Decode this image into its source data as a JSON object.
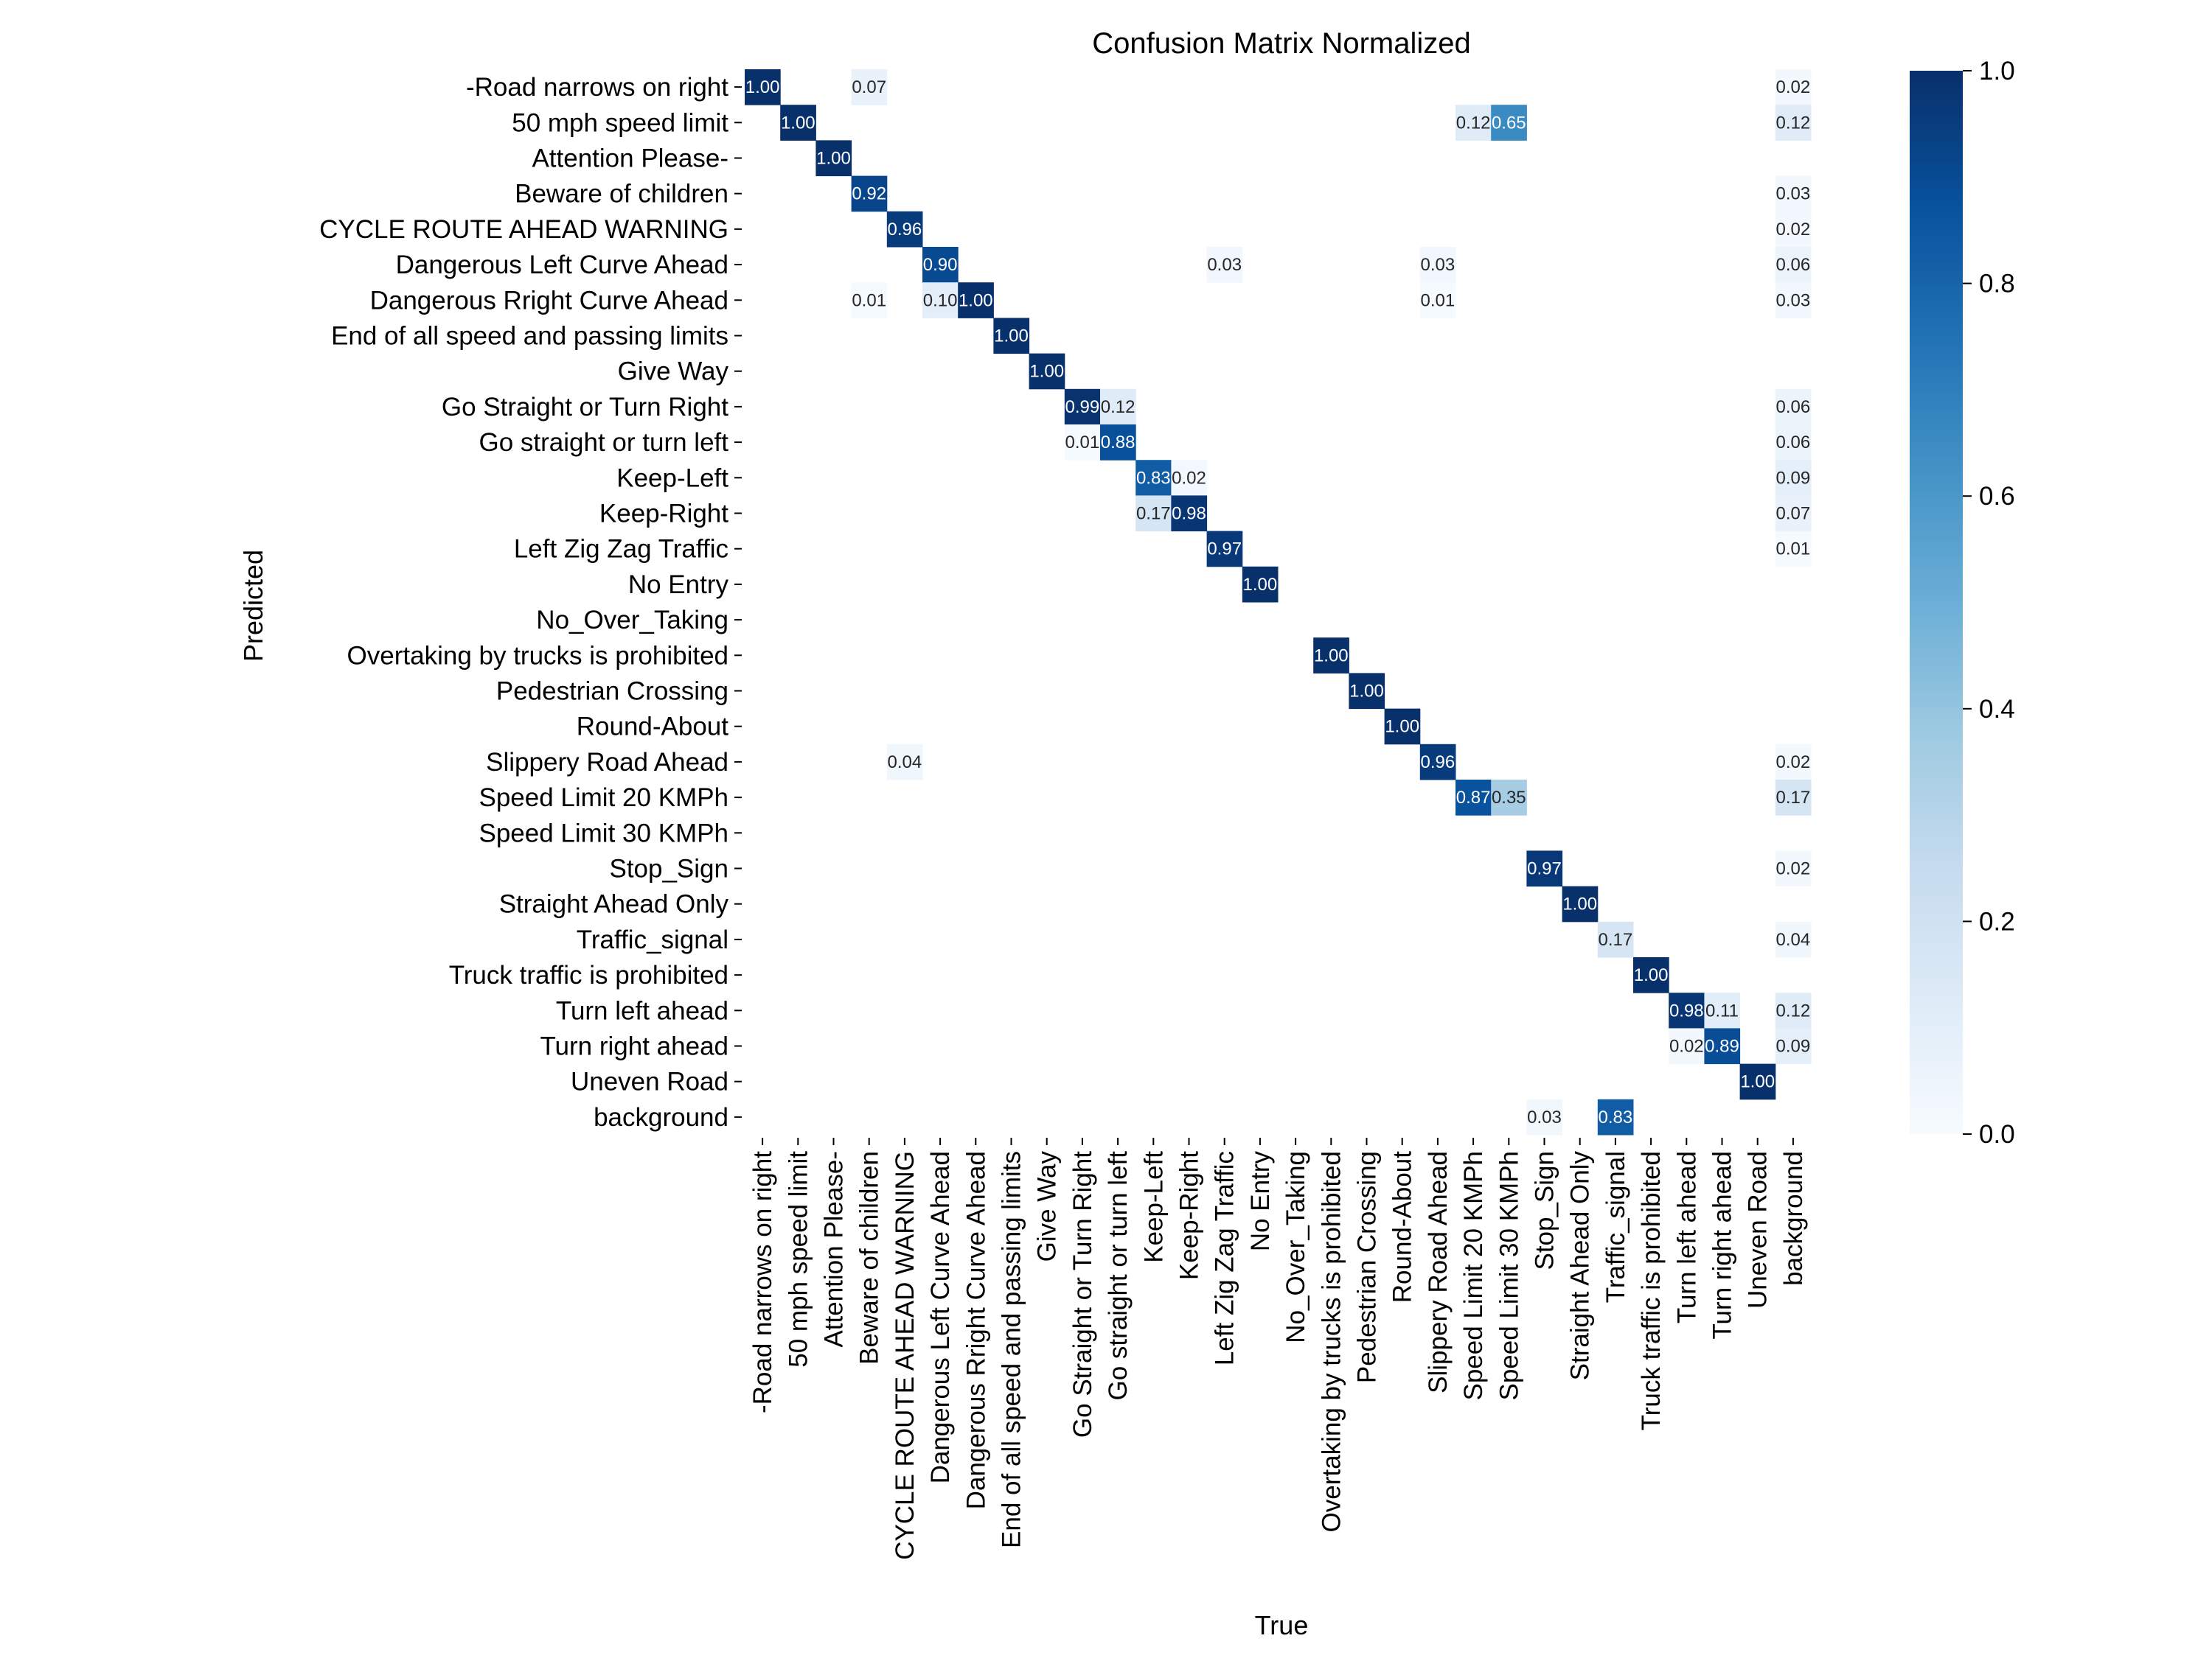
{
  "chart_data": {
    "type": "heatmap",
    "title": "Confusion Matrix Normalized",
    "xlabel": "True",
    "ylabel": "Predicted",
    "classes": [
      "-Road narrows on right",
      "50 mph speed limit",
      "Attention Please-",
      "Beware of children",
      "CYCLE ROUTE AHEAD WARNING",
      "Dangerous Left Curve Ahead",
      "Dangerous Rright Curve Ahead",
      "End of all speed and passing limits",
      "Give Way",
      "Go Straight or Turn Right",
      "Go straight or turn left",
      "Keep-Left",
      "Keep-Right",
      "Left Zig Zag Traffic",
      "No Entry",
      "No_Over_Taking",
      "Overtaking by trucks is prohibited",
      "Pedestrian Crossing",
      "Round-About",
      "Slippery Road Ahead",
      "Speed Limit 20 KMPh",
      "Speed Limit 30 KMPh",
      "Stop_Sign",
      "Straight Ahead Only",
      "Traffic_signal",
      "Truck traffic is prohibited",
      "Turn left ahead",
      "Turn right ahead",
      "Uneven Road",
      "background"
    ],
    "cells": [
      {
        "row": 0,
        "col": 0,
        "value": 1.0
      },
      {
        "row": 0,
        "col": 3,
        "value": 0.07
      },
      {
        "row": 0,
        "col": 29,
        "value": 0.02
      },
      {
        "row": 1,
        "col": 1,
        "value": 1.0
      },
      {
        "row": 1,
        "col": 20,
        "value": 0.12
      },
      {
        "row": 1,
        "col": 21,
        "value": 0.65
      },
      {
        "row": 1,
        "col": 29,
        "value": 0.12
      },
      {
        "row": 2,
        "col": 2,
        "value": 1.0
      },
      {
        "row": 3,
        "col": 3,
        "value": 0.92
      },
      {
        "row": 3,
        "col": 29,
        "value": 0.03
      },
      {
        "row": 4,
        "col": 4,
        "value": 0.96
      },
      {
        "row": 4,
        "col": 29,
        "value": 0.02
      },
      {
        "row": 5,
        "col": 5,
        "value": 0.9
      },
      {
        "row": 5,
        "col": 13,
        "value": 0.03
      },
      {
        "row": 5,
        "col": 19,
        "value": 0.03
      },
      {
        "row": 5,
        "col": 29,
        "value": 0.06
      },
      {
        "row": 6,
        "col": 3,
        "value": 0.01
      },
      {
        "row": 6,
        "col": 5,
        "value": 0.1
      },
      {
        "row": 6,
        "col": 6,
        "value": 1.0
      },
      {
        "row": 6,
        "col": 19,
        "value": 0.01
      },
      {
        "row": 6,
        "col": 29,
        "value": 0.03
      },
      {
        "row": 7,
        "col": 7,
        "value": 1.0
      },
      {
        "row": 8,
        "col": 8,
        "value": 1.0
      },
      {
        "row": 9,
        "col": 9,
        "value": 0.99
      },
      {
        "row": 9,
        "col": 10,
        "value": 0.12
      },
      {
        "row": 9,
        "col": 29,
        "value": 0.06
      },
      {
        "row": 10,
        "col": 9,
        "value": 0.01
      },
      {
        "row": 10,
        "col": 10,
        "value": 0.88
      },
      {
        "row": 10,
        "col": 29,
        "value": 0.06
      },
      {
        "row": 11,
        "col": 11,
        "value": 0.83
      },
      {
        "row": 11,
        "col": 12,
        "value": 0.02
      },
      {
        "row": 11,
        "col": 29,
        "value": 0.09
      },
      {
        "row": 12,
        "col": 11,
        "value": 0.17
      },
      {
        "row": 12,
        "col": 12,
        "value": 0.98
      },
      {
        "row": 12,
        "col": 29,
        "value": 0.07
      },
      {
        "row": 13,
        "col": 13,
        "value": 0.97
      },
      {
        "row": 13,
        "col": 29,
        "value": 0.01
      },
      {
        "row": 14,
        "col": 14,
        "value": 1.0
      },
      {
        "row": 16,
        "col": 16,
        "value": 1.0
      },
      {
        "row": 17,
        "col": 17,
        "value": 1.0
      },
      {
        "row": 18,
        "col": 18,
        "value": 1.0
      },
      {
        "row": 19,
        "col": 4,
        "value": 0.04
      },
      {
        "row": 19,
        "col": 19,
        "value": 0.96
      },
      {
        "row": 19,
        "col": 29,
        "value": 0.02
      },
      {
        "row": 20,
        "col": 20,
        "value": 0.87
      },
      {
        "row": 20,
        "col": 21,
        "value": 0.35
      },
      {
        "row": 20,
        "col": 29,
        "value": 0.17
      },
      {
        "row": 22,
        "col": 22,
        "value": 0.97
      },
      {
        "row": 22,
        "col": 29,
        "value": 0.02
      },
      {
        "row": 23,
        "col": 23,
        "value": 1.0
      },
      {
        "row": 24,
        "col": 24,
        "value": 0.17
      },
      {
        "row": 24,
        "col": 29,
        "value": 0.04
      },
      {
        "row": 25,
        "col": 25,
        "value": 1.0
      },
      {
        "row": 26,
        "col": 26,
        "value": 0.98
      },
      {
        "row": 26,
        "col": 27,
        "value": 0.11
      },
      {
        "row": 26,
        "col": 29,
        "value": 0.12
      },
      {
        "row": 27,
        "col": 26,
        "value": 0.02
      },
      {
        "row": 27,
        "col": 27,
        "value": 0.89
      },
      {
        "row": 27,
        "col": 29,
        "value": 0.09
      },
      {
        "row": 28,
        "col": 28,
        "value": 1.0
      },
      {
        "row": 29,
        "col": 22,
        "value": 0.03
      },
      {
        "row": 29,
        "col": 24,
        "value": 0.83
      }
    ],
    "colorbar": {
      "range": [
        0.0,
        1.0
      ],
      "ticks": [
        "0.0",
        "0.2",
        "0.4",
        "0.6",
        "0.8",
        "1.0"
      ],
      "colormap": "Blues"
    },
    "grid": false
  }
}
